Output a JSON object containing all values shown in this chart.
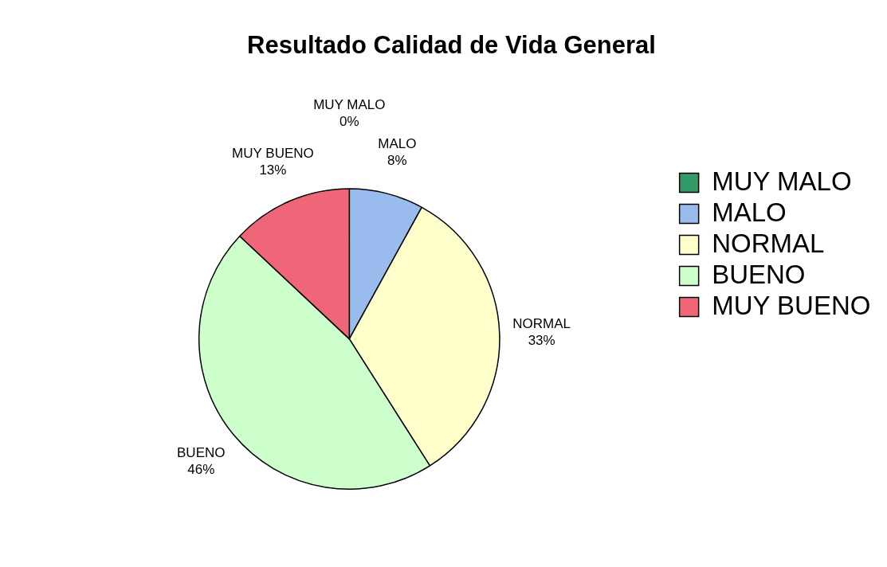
{
  "chart_data": {
    "type": "pie",
    "title": "Resultado Calidad de Vida General",
    "categories": [
      "MUY MALO",
      "MALO",
      "NORMAL",
      "BUENO",
      "MUY BUENO"
    ],
    "values": [
      0,
      8,
      33,
      46,
      13
    ],
    "value_labels": [
      "0%",
      "8%",
      "33%",
      "46%",
      "13%"
    ],
    "colors": [
      "#339966",
      "#99bbee",
      "#ffffcc",
      "#ccffcc",
      "#ee6677"
    ],
    "legend": "right"
  }
}
